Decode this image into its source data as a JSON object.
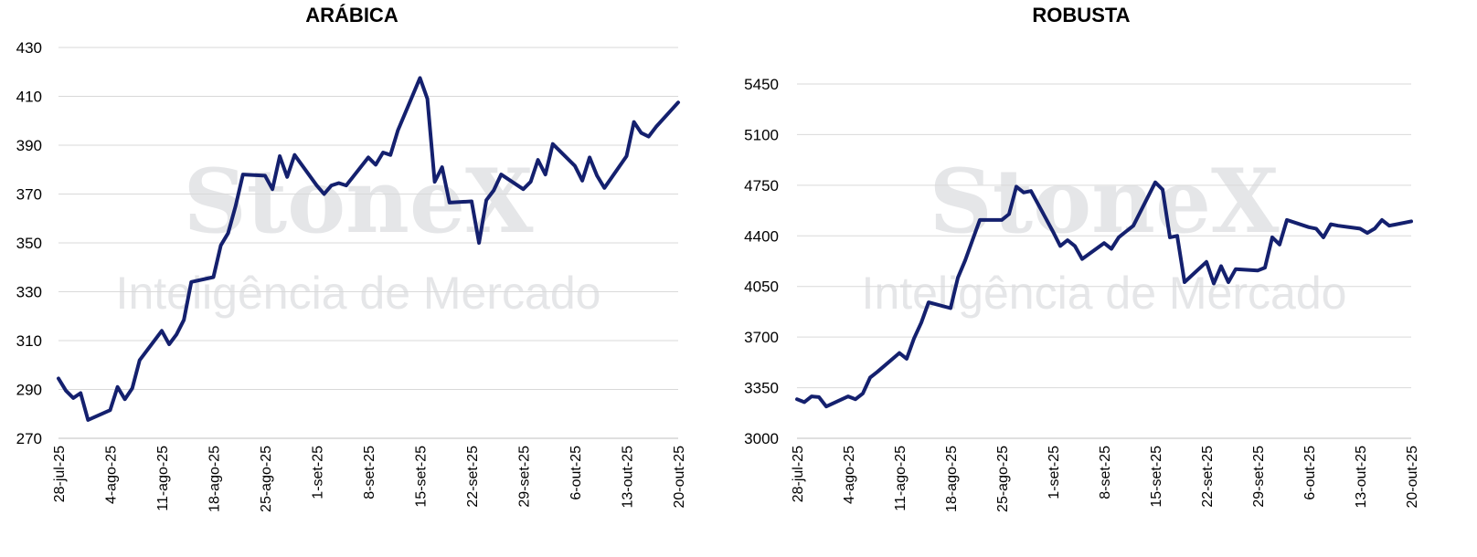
{
  "watermark": {
    "brand": "StoneX",
    "tagline": "Inteligência de Mercado"
  },
  "chart_data": [
    {
      "id": "arabica",
      "type": "line",
      "title": "ARÁBICA",
      "xlabel": "",
      "ylabel": "",
      "ylim": [
        270,
        430
      ],
      "yticks": [
        "270",
        "290",
        "310",
        "330",
        "350",
        "370",
        "390",
        "410",
        "430"
      ],
      "xticks": [
        "28-jul-25",
        "4-ago-25",
        "11-ago-25",
        "18-ago-25",
        "25-ago-25",
        "1-set-25",
        "8-set-25",
        "15-set-25",
        "22-set-25",
        "29-set-25",
        "6-out-25",
        "13-out-25",
        "20-out-25"
      ],
      "grid": true,
      "line_color": "#14206e",
      "series": [
        {
          "x": [
            0,
            1,
            2,
            3,
            4,
            7,
            8,
            9,
            10,
            11,
            14,
            15,
            16,
            17,
            18,
            21,
            22,
            23,
            24,
            25,
            28,
            29,
            30,
            31,
            32,
            35,
            36,
            37,
            38,
            39,
            42,
            43,
            44,
            45,
            46,
            49,
            50,
            51,
            52,
            53,
            56,
            57,
            58,
            59,
            60,
            63,
            64,
            65,
            66,
            67,
            70,
            71,
            72,
            73,
            74,
            77,
            78,
            79,
            80,
            81,
            84
          ],
          "y": [
            294.5,
            289.5,
            286.5,
            288.5,
            277.5,
            281.5,
            291,
            286,
            290.5,
            302,
            314,
            308.5,
            312.5,
            318.5,
            334,
            336,
            349,
            354,
            365,
            378,
            377.5,
            372,
            385.5,
            377,
            386,
            373.5,
            370,
            373.5,
            374.5,
            373.5,
            385,
            382,
            387,
            386,
            396,
            417.5,
            409,
            375,
            381,
            366.5,
            367,
            350,
            367.5,
            371.5,
            378,
            372,
            375,
            384,
            378,
            390.5,
            381.5,
            375.5,
            385,
            377.5,
            372.5,
            385.5,
            399.5,
            395,
            393.5,
            397.5,
            407.5
          ]
        }
      ]
    },
    {
      "id": "robusta",
      "type": "line",
      "title": "ROBUSTA",
      "xlabel": "",
      "ylabel": "",
      "ylim": [
        3000,
        5450
      ],
      "yticks": [
        "3000",
        "3350",
        "3700",
        "4050",
        "4400",
        "4750",
        "5100",
        "5450"
      ],
      "xticks": [
        "28-jul-25",
        "4-ago-25",
        "11-ago-25",
        "18-ago-25",
        "25-ago-25",
        "1-set-25",
        "8-set-25",
        "15-set-25",
        "22-set-25",
        "29-set-25",
        "6-out-25",
        "13-out-25",
        "20-out-25"
      ],
      "grid": true,
      "line_color": "#14206e",
      "series": [
        {
          "x": [
            0,
            1,
            2,
            3,
            4,
            7,
            8,
            9,
            10,
            11,
            14,
            15,
            16,
            17,
            18,
            21,
            22,
            23,
            24,
            25,
            28,
            29,
            30,
            31,
            32,
            35,
            36,
            37,
            38,
            39,
            42,
            43,
            44,
            45,
            46,
            49,
            50,
            51,
            52,
            53,
            56,
            57,
            58,
            59,
            60,
            63,
            64,
            65,
            66,
            67,
            70,
            71,
            72,
            73,
            74,
            77,
            78,
            79,
            80,
            81,
            84
          ],
          "y": [
            3270,
            3250,
            3290,
            3285,
            3220,
            3290,
            3270,
            3310,
            3420,
            3460,
            3590,
            3550,
            3690,
            3800,
            3940,
            3900,
            4110,
            4230,
            4370,
            4510,
            4510,
            4550,
            4740,
            4700,
            4710,
            4430,
            4330,
            4370,
            4330,
            4240,
            4350,
            4310,
            4390,
            4430,
            4470,
            4770,
            4720,
            4390,
            4400,
            4080,
            4220,
            4070,
            4190,
            4080,
            4170,
            4160,
            4180,
            4390,
            4340,
            4510,
            4460,
            4450,
            4390,
            4480,
            4470,
            4450,
            4420,
            4450,
            4510,
            4470,
            4500
          ]
        }
      ]
    }
  ]
}
